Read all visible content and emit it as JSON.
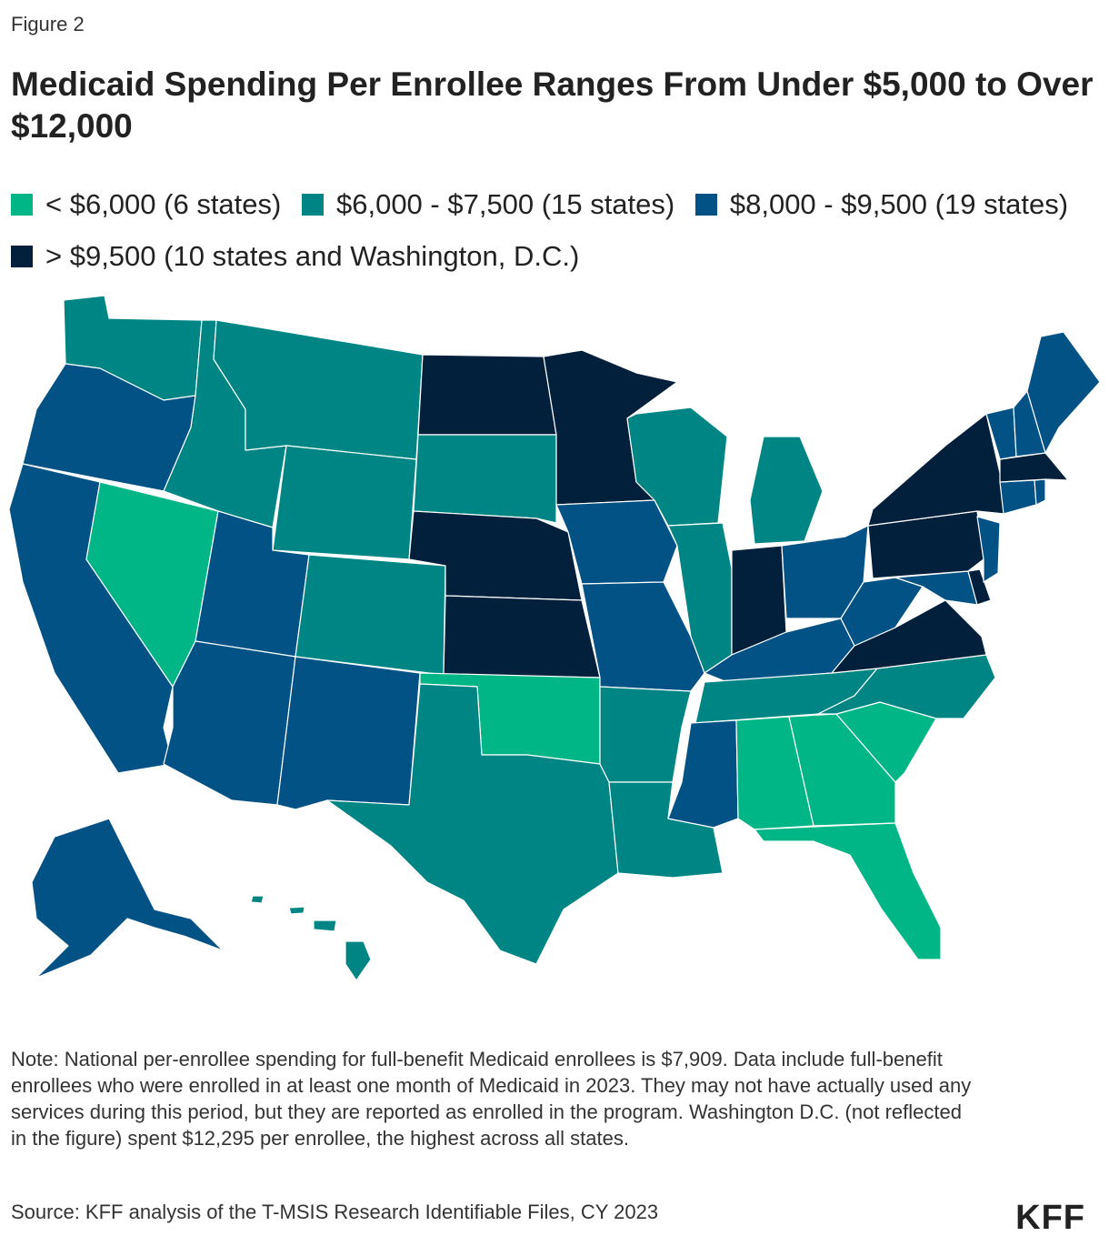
{
  "figure_label": "Figure 2",
  "title": "Medicaid Spending Per Enrollee Ranges From Under $5,000 to Over $12,000",
  "legend": [
    {
      "label": "< $6,000 (6 states)",
      "color": "#00b586"
    },
    {
      "label": "$6,000 - $7,500 (15 states)",
      "color": "#008585"
    },
    {
      "label": "$8,000 - $9,500 (19 states)",
      "color": "#035286"
    },
    {
      "label": "> $9,500 (10 states and Washington, D.C.)",
      "color": "#021f3b"
    }
  ],
  "categories": {
    "low": "#00b586",
    "midlow": "#008585",
    "midhigh": "#035286",
    "high": "#021f3b"
  },
  "states": [
    {
      "name": "Washington",
      "category": "midlow"
    },
    {
      "name": "Oregon",
      "category": "midhigh"
    },
    {
      "name": "California",
      "category": "midhigh"
    },
    {
      "name": "Nevada",
      "category": "low"
    },
    {
      "name": "Idaho",
      "category": "midlow"
    },
    {
      "name": "Montana",
      "category": "midlow"
    },
    {
      "name": "Wyoming",
      "category": "midlow"
    },
    {
      "name": "Utah",
      "category": "midhigh"
    },
    {
      "name": "Arizona",
      "category": "midhigh"
    },
    {
      "name": "Colorado",
      "category": "midlow"
    },
    {
      "name": "New Mexico",
      "category": "midhigh"
    },
    {
      "name": "North Dakota",
      "category": "high"
    },
    {
      "name": "South Dakota",
      "category": "midlow"
    },
    {
      "name": "Nebraska",
      "category": "high"
    },
    {
      "name": "Kansas",
      "category": "high"
    },
    {
      "name": "Oklahoma",
      "category": "low"
    },
    {
      "name": "Texas",
      "category": "midlow"
    },
    {
      "name": "Minnesota",
      "category": "high"
    },
    {
      "name": "Iowa",
      "category": "midhigh"
    },
    {
      "name": "Missouri",
      "category": "midhigh"
    },
    {
      "name": "Arkansas",
      "category": "midlow"
    },
    {
      "name": "Louisiana",
      "category": "midlow"
    },
    {
      "name": "Wisconsin",
      "category": "midlow"
    },
    {
      "name": "Illinois",
      "category": "midlow"
    },
    {
      "name": "Michigan",
      "category": "midlow"
    },
    {
      "name": "Indiana",
      "category": "high"
    },
    {
      "name": "Ohio",
      "category": "midhigh"
    },
    {
      "name": "Kentucky",
      "category": "midhigh"
    },
    {
      "name": "Tennessee",
      "category": "midlow"
    },
    {
      "name": "Mississippi",
      "category": "midhigh"
    },
    {
      "name": "Alabama",
      "category": "low"
    },
    {
      "name": "Georgia",
      "category": "low"
    },
    {
      "name": "Florida",
      "category": "low"
    },
    {
      "name": "South Carolina",
      "category": "low"
    },
    {
      "name": "North Carolina",
      "category": "midlow"
    },
    {
      "name": "Virginia",
      "category": "high"
    },
    {
      "name": "West Virginia",
      "category": "midhigh"
    },
    {
      "name": "Maryland",
      "category": "midhigh"
    },
    {
      "name": "Delaware",
      "category": "high"
    },
    {
      "name": "Pennsylvania",
      "category": "high"
    },
    {
      "name": "New Jersey",
      "category": "midhigh"
    },
    {
      "name": "New York",
      "category": "high"
    },
    {
      "name": "Connecticut",
      "category": "midhigh"
    },
    {
      "name": "Rhode Island",
      "category": "midhigh"
    },
    {
      "name": "Massachusetts",
      "category": "high"
    },
    {
      "name": "Vermont",
      "category": "midhigh"
    },
    {
      "name": "New Hampshire",
      "category": "midhigh"
    },
    {
      "name": "Maine",
      "category": "midhigh"
    },
    {
      "name": "Alaska",
      "category": "midhigh"
    },
    {
      "name": "Hawaii",
      "category": "midlow"
    }
  ],
  "note": "Note: National per-enrollee spending for full-benefit Medicaid enrollees is $7,909. Data include full-benefit enrollees who were enrolled in at least one month of Medicaid in 2023. They may not have actually used any services during this period, but they are reported as enrolled in the program. Washington D.C. (not reflected in the figure) spent $12,295 per enrollee, the highest across all states.",
  "source": "Source: KFF analysis of the T-MSIS Research Identifiable Files, CY 2023",
  "logo": "KFF"
}
